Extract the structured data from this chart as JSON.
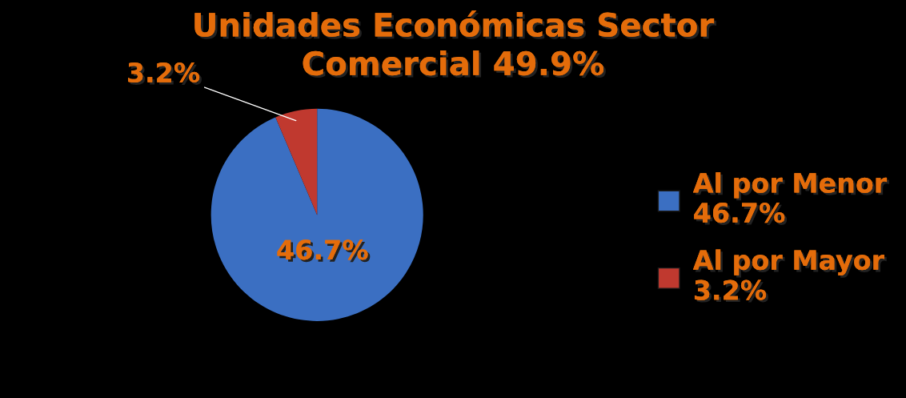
{
  "chart_data": {
    "type": "pie",
    "title": "Unidades Económicas Sector\nComercial 49.9%",
    "categories": [
      "Al por Menor\n46.7%",
      "Al por Mayor\n3.2%"
    ],
    "values": [
      46.7,
      3.2
    ],
    "colors": [
      "#3b6fc2",
      "#c0392f"
    ],
    "value_labels": [
      "46.7%",
      "3.2%"
    ],
    "legend": "right"
  }
}
